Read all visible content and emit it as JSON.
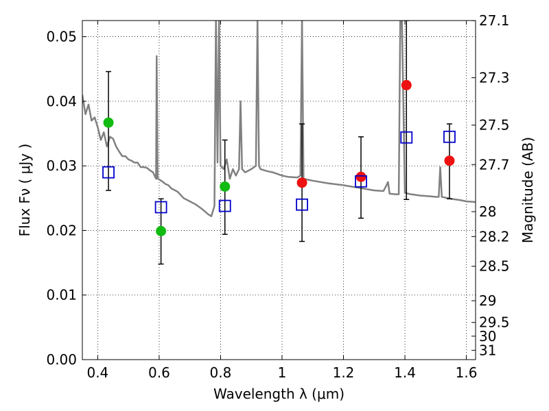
{
  "chart_data": {
    "type": "scatter",
    "xlabel": "Wavelength  λ (μm)",
    "ylabel": "Flux  Fν  ( μJy )",
    "y2label": "Magnitude (AB)",
    "xlim": [
      0.35,
      1.63
    ],
    "ylim": [
      0.0,
      0.0525
    ],
    "x_ticks": [
      0.4,
      0.6,
      0.8,
      1.0,
      1.2,
      1.4,
      1.6
    ],
    "x_tick_labels": [
      "0.4",
      "0.6",
      "0.8",
      "1",
      "1.2",
      "1.4",
      "1.6"
    ],
    "y_ticks": [
      0.0,
      0.01,
      0.02,
      0.03,
      0.04,
      0.05
    ],
    "y_tick_labels": [
      "0.00",
      "0.01",
      "0.02",
      "0.03",
      "0.04",
      "0.05"
    ],
    "y2_ticks": [
      {
        "label": "27.1",
        "mag": 27.1
      },
      {
        "label": "27.3",
        "mag": 27.3
      },
      {
        "label": "27.5",
        "mag": 27.5
      },
      {
        "label": "27.7",
        "mag": 27.7
      },
      {
        "label": "28",
        "mag": 28.0
      },
      {
        "label": "28.2",
        "mag": 28.2
      },
      {
        "label": "28.5",
        "mag": 28.5
      },
      {
        "label": "29",
        "mag": 29.0
      },
      {
        "label": "29.5",
        "mag": 29.5
      },
      {
        "label": "30",
        "mag": 30.0
      },
      {
        "label": "31",
        "mag": 31.0
      }
    ],
    "grid": true,
    "series": [
      {
        "kind": "line",
        "color": "#808080",
        "x": [
          0.35,
          0.36,
          0.37,
          0.38,
          0.39,
          0.4,
          0.41,
          0.42,
          0.43,
          0.44,
          0.45,
          0.46,
          0.47,
          0.48,
          0.49,
          0.5,
          0.51,
          0.52,
          0.53,
          0.54,
          0.55,
          0.56,
          0.57,
          0.58,
          0.59,
          0.592,
          0.595,
          0.6,
          0.61,
          0.62,
          0.63,
          0.64,
          0.66,
          0.68,
          0.7,
          0.72,
          0.74,
          0.76,
          0.77,
          0.78,
          0.785,
          0.79,
          0.795,
          0.8,
          0.81,
          0.82,
          0.83,
          0.84,
          0.85,
          0.86,
          0.865,
          0.87,
          0.88,
          0.9,
          0.915,
          0.92,
          0.925,
          0.93,
          0.95,
          0.97,
          1.0,
          1.02,
          1.05,
          1.06,
          1.065,
          1.07,
          1.1,
          1.15,
          1.2,
          1.25,
          1.3,
          1.33,
          1.34,
          1.345,
          1.35,
          1.37,
          1.38,
          1.385,
          1.39,
          1.4,
          1.42,
          1.45,
          1.48,
          1.5,
          1.51,
          1.515,
          1.52,
          1.53,
          1.55,
          1.58,
          1.6,
          1.63
        ],
        "y": [
          0.041,
          0.038,
          0.0395,
          0.037,
          0.0375,
          0.036,
          0.034,
          0.0352,
          0.033,
          0.0345,
          0.0342,
          0.033,
          0.0322,
          0.0315,
          0.0315,
          0.031,
          0.0308,
          0.0305,
          0.0305,
          0.0298,
          0.0298,
          0.0297,
          0.0293,
          0.029,
          0.028,
          0.047,
          0.028,
          0.0279,
          0.0276,
          0.0272,
          0.027,
          0.0265,
          0.026,
          0.025,
          0.0245,
          0.024,
          0.0233,
          0.0225,
          0.0222,
          0.0238,
          0.053,
          0.0305,
          0.053,
          0.03,
          0.0295,
          0.031,
          0.028,
          0.0295,
          0.0285,
          0.0295,
          0.04,
          0.0295,
          0.029,
          0.0295,
          0.03,
          0.0525,
          0.03,
          0.0295,
          0.0292,
          0.029,
          0.0285,
          0.0283,
          0.0282,
          0.0285,
          0.053,
          0.028,
          0.0277,
          0.0273,
          0.027,
          0.0266,
          0.0262,
          0.0261,
          0.027,
          0.0275,
          0.0257,
          0.0256,
          0.0256,
          0.053,
          0.053,
          0.0258,
          0.0256,
          0.0254,
          0.0253,
          0.0252,
          0.0252,
          0.0298,
          0.0252,
          0.0251,
          0.0249,
          0.0247,
          0.0245,
          0.0244
        ]
      },
      {
        "kind": "points",
        "marker": "circle",
        "color": "#11bb11",
        "points": [
          {
            "x": 0.435,
            "y": 0.0367
          },
          {
            "x": 0.606,
            "y": 0.0199
          },
          {
            "x": 0.814,
            "y": 0.0268
          }
        ]
      },
      {
        "kind": "points",
        "marker": "circle",
        "color": "#ee1111",
        "points": [
          {
            "x": 1.065,
            "y": 0.0274
          },
          {
            "x": 1.257,
            "y": 0.0283
          },
          {
            "x": 1.405,
            "y": 0.0425
          },
          {
            "x": 1.545,
            "y": 0.0308
          }
        ]
      },
      {
        "kind": "points",
        "marker": "square",
        "color": "#0000cc",
        "points": [
          {
            "x": 0.435,
            "y": 0.029,
            "ylo": 0.0262,
            "yhi": 0.0446
          },
          {
            "x": 0.606,
            "y": 0.0236,
            "ylo": 0.0148,
            "yhi": 0.0249
          },
          {
            "x": 0.814,
            "y": 0.0238,
            "ylo": 0.0194,
            "yhi": 0.034
          },
          {
            "x": 1.065,
            "y": 0.024,
            "ylo": 0.0183,
            "yhi": 0.0365
          },
          {
            "x": 1.257,
            "y": 0.0276,
            "ylo": 0.0219,
            "yhi": 0.0345
          },
          {
            "x": 1.405,
            "y": 0.0344,
            "ylo": 0.0248,
            "yhi": 0.0525
          },
          {
            "x": 1.545,
            "y": 0.0345,
            "ylo": 0.0249,
            "yhi": 0.0365
          }
        ]
      }
    ]
  }
}
